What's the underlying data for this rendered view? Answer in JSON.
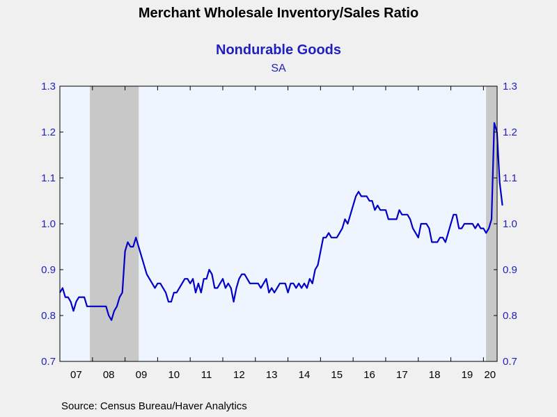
{
  "colors": {
    "background": "#f0f0f0",
    "plot_background": "#eef5fe",
    "recession": "#c8c8c8",
    "line": "#0000c8",
    "title": "#000000",
    "subtitle": "#1f1fbf",
    "y_tick_text": "#1f1fbf"
  },
  "chart_data": {
    "type": "line",
    "title": "Merchant Wholesale Inventory/Sales Ratio",
    "subtitle": "Nondurable Goods",
    "subsubtitle": "SA",
    "source": "Source:  Census Bureau/Haver Analytics",
    "xlabel": "",
    "ylabel": "",
    "xlim": [
      2007.0,
      2020.42
    ],
    "ylim": [
      0.7,
      1.3
    ],
    "y_ticks": [
      0.7,
      0.8,
      0.9,
      1.0,
      1.1,
      1.2,
      1.3
    ],
    "y_tick_labels": [
      "0.7",
      "0.8",
      "0.9",
      "1.0",
      "1.1",
      "1.2",
      "1.3"
    ],
    "x_tick_labels": [
      {
        "label": "07",
        "x": 2007.5
      },
      {
        "label": "08",
        "x": 2008.5
      },
      {
        "label": "09",
        "x": 2009.5
      },
      {
        "label": "10",
        "x": 2010.5
      },
      {
        "label": "11",
        "x": 2011.5
      },
      {
        "label": "12",
        "x": 2012.5
      },
      {
        "label": "13",
        "x": 2013.5
      },
      {
        "label": "14",
        "x": 2014.5
      },
      {
        "label": "15",
        "x": 2015.5
      },
      {
        "label": "16",
        "x": 2016.5
      },
      {
        "label": "17",
        "x": 2017.5
      },
      {
        "label": "18",
        "x": 2018.5
      },
      {
        "label": "19",
        "x": 2019.5
      },
      {
        "label": "20",
        "x": 2020.2
      }
    ],
    "recessions": [
      {
        "start": 2007.92,
        "end": 2009.42
      },
      {
        "start": 2020.08,
        "end": 2020.42
      }
    ],
    "grid": false,
    "legend": "none",
    "series": [
      {
        "name": "Nondurable Goods",
        "start_year": 2007,
        "start_month": 1,
        "values": [
          0.85,
          0.86,
          0.84,
          0.84,
          0.83,
          0.81,
          0.83,
          0.84,
          0.84,
          0.84,
          0.82,
          0.82,
          0.82,
          0.82,
          0.82,
          0.82,
          0.82,
          0.82,
          0.8,
          0.79,
          0.81,
          0.82,
          0.84,
          0.85,
          0.94,
          0.96,
          0.95,
          0.95,
          0.97,
          0.95,
          0.93,
          0.91,
          0.89,
          0.88,
          0.87,
          0.86,
          0.87,
          0.87,
          0.86,
          0.85,
          0.83,
          0.83,
          0.85,
          0.85,
          0.86,
          0.87,
          0.88,
          0.88,
          0.87,
          0.88,
          0.85,
          0.87,
          0.85,
          0.88,
          0.88,
          0.9,
          0.89,
          0.86,
          0.86,
          0.87,
          0.88,
          0.86,
          0.87,
          0.86,
          0.83,
          0.86,
          0.88,
          0.89,
          0.89,
          0.88,
          0.87,
          0.87,
          0.87,
          0.87,
          0.86,
          0.87,
          0.88,
          0.85,
          0.86,
          0.85,
          0.86,
          0.87,
          0.87,
          0.87,
          0.85,
          0.87,
          0.87,
          0.86,
          0.87,
          0.86,
          0.87,
          0.86,
          0.88,
          0.87,
          0.9,
          0.91,
          0.94,
          0.97,
          0.97,
          0.98,
          0.97,
          0.97,
          0.97,
          0.98,
          0.99,
          1.01,
          1.0,
          1.02,
          1.04,
          1.06,
          1.07,
          1.06,
          1.06,
          1.06,
          1.05,
          1.05,
          1.03,
          1.04,
          1.03,
          1.03,
          1.03,
          1.01,
          1.01,
          1.01,
          1.01,
          1.03,
          1.02,
          1.02,
          1.02,
          1.01,
          0.99,
          0.98,
          0.97,
          1.0,
          1.0,
          1.0,
          0.99,
          0.96,
          0.96,
          0.96,
          0.97,
          0.97,
          0.96,
          0.98,
          1.0,
          1.02,
          1.02,
          0.99,
          0.99,
          1.0,
          1.0,
          1.0,
          1.0,
          0.99,
          1.0,
          0.99,
          0.99,
          0.98,
          0.99,
          1.01,
          1.22,
          1.2,
          1.09,
          1.04
        ]
      }
    ]
  }
}
